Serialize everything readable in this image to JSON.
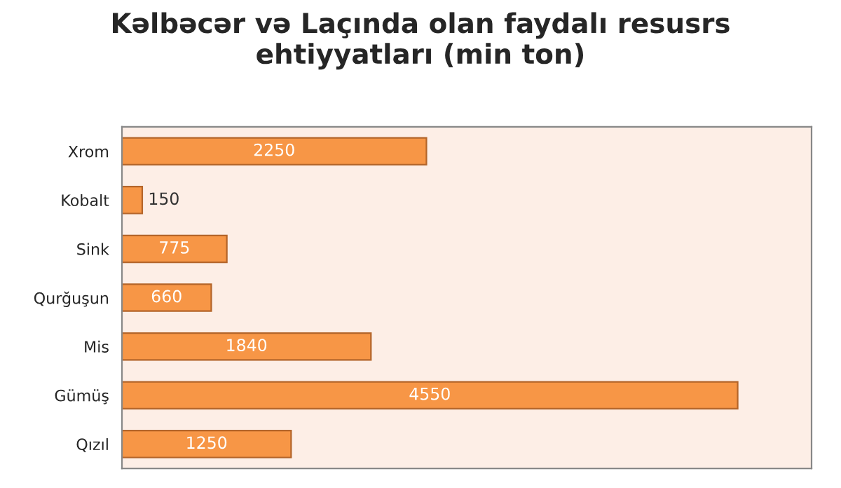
{
  "chart_data": {
    "type": "bar",
    "orientation": "horizontal",
    "title": "Kəlbəcər və Laçında olan faydalı resusrs\nehtiyyatları (min ton)",
    "categories": [
      "Xrom",
      "Kobalt",
      "Sink",
      "Qurğuşun",
      "Mis",
      "Gümüş",
      "Qızıl"
    ],
    "values": [
      2250,
      150,
      775,
      660,
      1840,
      4550,
      1250
    ],
    "color": "#f79646",
    "data_labels": true,
    "tick_labels": "y",
    "grid": false,
    "legend": false
  }
}
